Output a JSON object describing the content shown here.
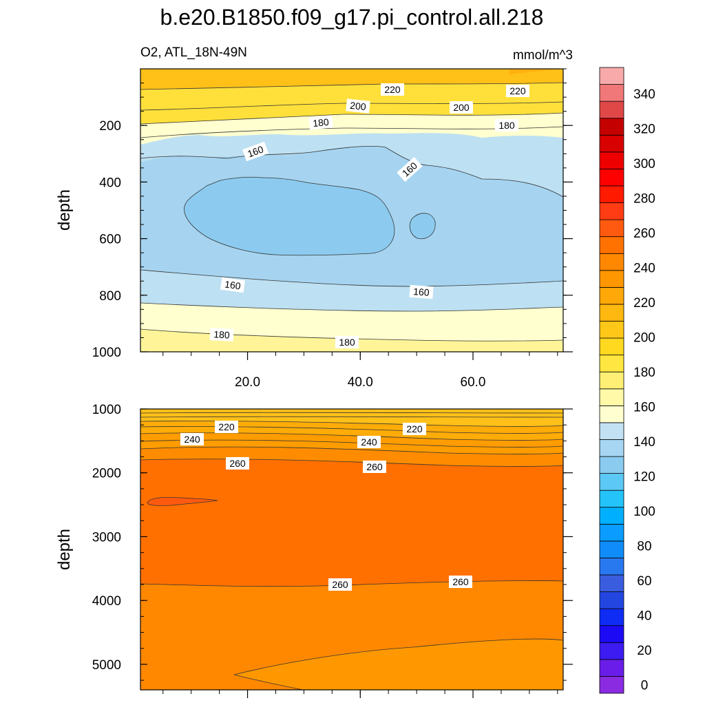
{
  "chart_data": {
    "type": "contour",
    "title": "b.e20.B1850.f09_g17.pi_control.all.218",
    "variable_label": "O2, ATL_18N-49N",
    "units": "mmol/m^3",
    "colorbar": {
      "ticks": [
        340,
        320,
        300,
        280,
        260,
        240,
        220,
        200,
        180,
        160,
        140,
        120,
        100,
        80,
        60,
        40,
        20,
        0
      ],
      "levels": [
        0,
        10,
        20,
        30,
        40,
        50,
        60,
        70,
        80,
        90,
        100,
        110,
        120,
        130,
        140,
        150,
        160,
        170,
        180,
        190,
        200,
        210,
        220,
        230,
        240,
        250,
        260,
        270,
        280,
        290,
        300,
        310,
        320,
        330,
        340,
        350,
        360
      ],
      "colors": [
        "#8a2be2",
        "#6a1de8",
        "#3c1cf0",
        "#1c0af5",
        "#0f2cf5",
        "#2446e0",
        "#3a5de0",
        "#2878f0",
        "#0f8cfa",
        "#0a9cff",
        "#00b0ff",
        "#24c4fa",
        "#5cc8f5",
        "#8acbef",
        "#a6d6f2",
        "#c2e2f4",
        "#fffed0",
        "#fff9a8",
        "#fff075",
        "#ffe640",
        "#ffd820",
        "#ffc818",
        "#ffb810",
        "#ffa808",
        "#ff9800",
        "#ff8800",
        "#ff7200",
        "#ff5a10",
        "#ff3c14",
        "#ff1a00",
        "#ff0000",
        "#ee0000",
        "#d80000",
        "#c40000",
        "#e04848",
        "#f07878",
        "#f8aaaa"
      ]
    },
    "panels": [
      {
        "name": "upper",
        "ylabel": "depth",
        "ylim": [
          0,
          1000
        ],
        "yticks": [
          200,
          400,
          600,
          800,
          1000
        ],
        "xlim": [
          1,
          76
        ],
        "xticks": [
          20,
          40,
          60
        ],
        "xtick_labels": [
          "20.0",
          "40.0",
          "60.0"
        ],
        "contour_labels": [
          "220",
          "220",
          "200",
          "200",
          "180",
          "180",
          "160",
          "160",
          "160",
          "160",
          "180",
          "180"
        ]
      },
      {
        "name": "lower",
        "ylabel": "depth",
        "ylim": [
          1000,
          5400
        ],
        "yticks": [
          1000,
          2000,
          3000,
          4000,
          5000
        ],
        "xlim": [
          1,
          76
        ],
        "xticks": [
          20,
          40,
          60
        ],
        "contour_labels": [
          "220",
          "220",
          "240",
          "240",
          "260",
          "260",
          "260",
          "260"
        ]
      }
    ]
  }
}
